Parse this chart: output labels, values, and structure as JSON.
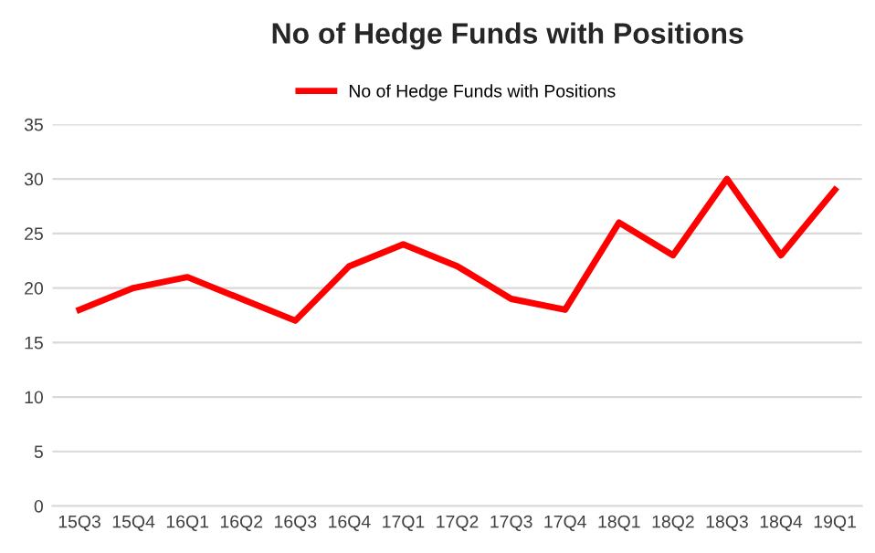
{
  "chart_data": {
    "type": "line",
    "title": "No of Hedge Funds with Positions",
    "categories": [
      "15Q3",
      "15Q4",
      "16Q1",
      "16Q2",
      "16Q3",
      "16Q4",
      "17Q1",
      "17Q2",
      "17Q3",
      "17Q4",
      "18Q1",
      "18Q2",
      "18Q3",
      "18Q4",
      "19Q1"
    ],
    "series": [
      {
        "name": "No of Hedge Funds with Positions",
        "color": "#ff0000",
        "values": [
          18,
          20,
          21,
          19,
          17,
          22,
          24,
          22,
          19,
          18,
          26,
          23,
          30,
          23,
          29
        ]
      }
    ],
    "ylim": [
      0,
      35
    ],
    "yticks": [
      0,
      5,
      10,
      15,
      20,
      25,
      30,
      35
    ],
    "grid": "y",
    "legend": "top",
    "marker": "none",
    "line_style": "solid"
  }
}
